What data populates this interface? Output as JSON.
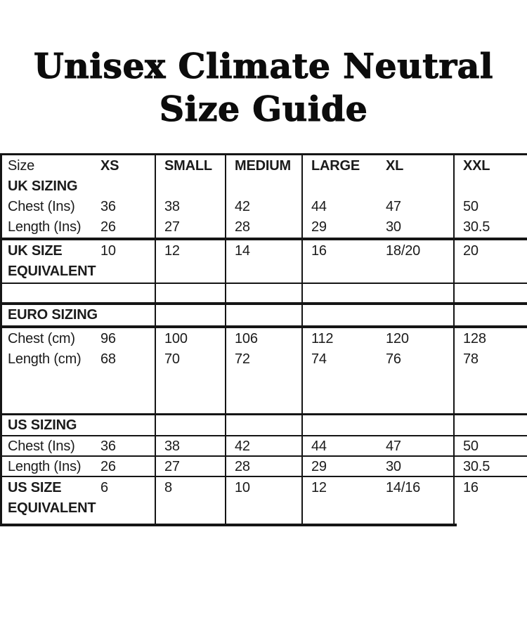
{
  "title": {
    "line1": "Unisex Climate Neutral",
    "line2": "Size Guide"
  },
  "table": {
    "columns": [
      "Size",
      "XS",
      "SMALL",
      "MEDIUM",
      "LARGE",
      "XL",
      "XXL"
    ],
    "sections": {
      "uk": {
        "heading": "UK SIZING",
        "chest": {
          "label": "Chest (Ins)",
          "values": [
            "36",
            "38",
            "42",
            "44",
            "47",
            "50"
          ]
        },
        "length": {
          "label": "Length (Ins)",
          "values": [
            "26",
            "27",
            "28",
            "29",
            "30",
            "30.5"
          ]
        },
        "equivalent": {
          "label_line1": "UK SIZE",
          "label_line2": "EQUIVALENT",
          "values": [
            "10",
            "12",
            "14",
            "16",
            "18/20",
            "20"
          ]
        }
      },
      "euro": {
        "heading": "EURO SIZING",
        "chest": {
          "label": "Chest (cm)",
          "values": [
            "96",
            "100",
            "106",
            "112",
            "120",
            "128"
          ]
        },
        "length": {
          "label": "Length (cm)",
          "values": [
            "68",
            "70",
            "72",
            "74",
            "76",
            "78"
          ]
        }
      },
      "us": {
        "heading": "US SIZING",
        "chest": {
          "label": "Chest (Ins)",
          "values": [
            "36",
            "38",
            "42",
            "44",
            "47",
            "50"
          ]
        },
        "length": {
          "label": "Length (Ins)",
          "values": [
            "26",
            "27",
            "28",
            "29",
            "30",
            "30.5"
          ]
        },
        "equivalent": {
          "label_line1": "US SIZE",
          "label_line2": "EQUIVALENT",
          "values": [
            "6",
            "8",
            "10",
            "12",
            "14/16",
            "16"
          ]
        }
      }
    }
  },
  "colors": {
    "text": "#1b1b1b",
    "border": "#151515",
    "background": "#ffffff"
  }
}
